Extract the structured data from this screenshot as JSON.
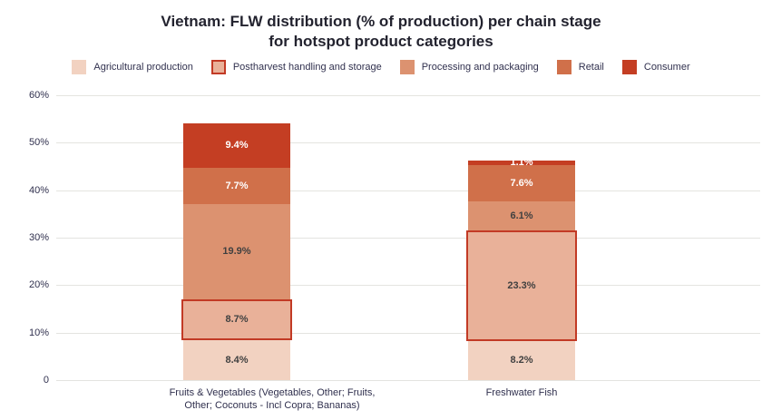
{
  "title": {
    "line1": "Vietnam: FLW distribution (% of production) per chain stage",
    "line2": "for hotspot product categories"
  },
  "chart_data": {
    "type": "bar",
    "stacked": true,
    "title": "Vietnam: FLW distribution (% of production) per chain stage for hotspot product categories",
    "categories": [
      "Fruits & Vegetables (Vegetables, Other; Fruits,\nOther; Coconuts - Incl Copra; Bananas)",
      "Freshwater Fish"
    ],
    "series": [
      {
        "name": "Agricultural production",
        "color": "#f2d2c1",
        "label_color": "#404040",
        "bordered": false,
        "values": [
          8.4,
          8.2
        ]
      },
      {
        "name": "Postharvest handling and storage",
        "color": "#e9b199",
        "label_color": "#404040",
        "bordered": true,
        "border_color": "#c23a25",
        "values": [
          8.7,
          23.3
        ]
      },
      {
        "name": "Processing and packaging",
        "color": "#dc9270",
        "label_color": "#404040",
        "bordered": false,
        "values": [
          19.9,
          6.1
        ]
      },
      {
        "name": "Retail",
        "color": "#d0704a",
        "label_color": "#ffffff",
        "bordered": false,
        "values": [
          7.7,
          7.6
        ]
      },
      {
        "name": "Consumer",
        "color": "#c43e23",
        "label_color": "#ffffff",
        "bordered": false,
        "values": [
          9.4,
          1.1
        ]
      }
    ],
    "y_ticks": [
      "0",
      "10%",
      "20%",
      "30%",
      "40%",
      "50%",
      "60%"
    ],
    "y_tick_values": [
      0,
      10,
      20,
      30,
      40,
      50,
      60
    ],
    "ylim": [
      0,
      60
    ],
    "grid": true,
    "legend_position": "top",
    "value_suffix": "%"
  },
  "colors": {
    "background": "#ffffff",
    "grid": "#e4e4e0",
    "axis_text": "#30304e",
    "title_text": "#23232f"
  }
}
